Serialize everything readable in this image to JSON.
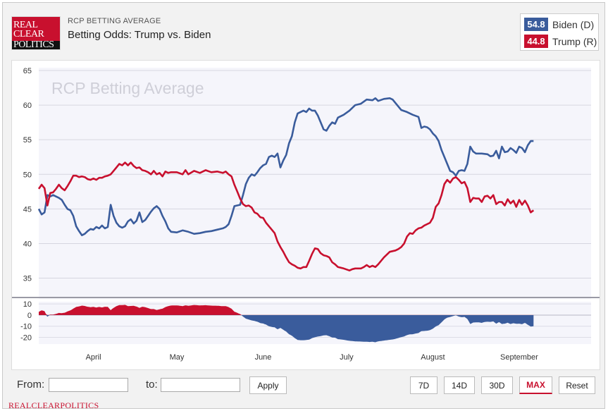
{
  "logo": {
    "line1": "REAL",
    "line2": "CLEAR",
    "line3": "POLITICS"
  },
  "header": {
    "subtitle": "RCP BETTING AVERAGE",
    "title": "Betting Odds: Trump vs. Biden"
  },
  "legend": [
    {
      "value": "54.8",
      "name": "Biden (D)",
      "color": "#3a5c9c"
    },
    {
      "value": "44.8",
      "name": "Trump (R)",
      "color": "#c8102e"
    }
  ],
  "controls": {
    "from_label": "From:",
    "from_value": "",
    "to_label": "to:",
    "to_value": "",
    "apply_label": "Apply",
    "ranges": [
      "7D",
      "14D",
      "30D",
      "MAX"
    ],
    "active_range": "MAX",
    "reset_label": "Reset"
  },
  "footer": {
    "text": "REALCLEARPOLITICS"
  },
  "chart_data": {
    "type": "line",
    "watermark": "RCP Betting Average",
    "ylim": [
      32,
      65
    ],
    "yticks": [
      35,
      40,
      45,
      50,
      55,
      60,
      65
    ],
    "spread_ylim": [
      -26,
      12
    ],
    "spread_yticks": [
      10,
      0,
      -10,
      -20
    ],
    "xlim": [
      0,
      192
    ],
    "month_labels": [
      {
        "label": "April",
        "day": 19
      },
      {
        "label": "May",
        "day": 48
      },
      {
        "label": "June",
        "day": 78
      },
      {
        "label": "July",
        "day": 107
      },
      {
        "label": "August",
        "day": 137
      },
      {
        "label": "September",
        "day": 167
      }
    ],
    "series": [
      {
        "name": "Biden (D)",
        "color": "#3a5c9c",
        "points": [
          [
            0,
            45.0
          ],
          [
            1,
            44.2
          ],
          [
            2,
            44.5
          ],
          [
            3,
            47.0
          ],
          [
            4,
            46.8
          ],
          [
            5,
            47.0
          ],
          [
            7,
            46.6
          ],
          [
            8,
            46.3
          ],
          [
            9,
            45.6
          ],
          [
            10,
            45.0
          ],
          [
            11,
            44.8
          ],
          [
            12,
            44.0
          ],
          [
            13,
            42.5
          ],
          [
            14,
            41.8
          ],
          [
            15,
            41.2
          ],
          [
            16,
            41.4
          ],
          [
            17,
            41.8
          ],
          [
            18,
            42.1
          ],
          [
            19,
            42.0
          ],
          [
            20,
            42.4
          ],
          [
            21,
            42.2
          ],
          [
            22,
            42.6
          ],
          [
            23,
            42.2
          ],
          [
            24,
            42.4
          ],
          [
            25,
            45.6
          ],
          [
            26,
            44.0
          ],
          [
            27,
            43.0
          ],
          [
            28,
            42.5
          ],
          [
            29,
            42.3
          ],
          [
            30,
            42.5
          ],
          [
            31,
            43.2
          ],
          [
            32,
            43.5
          ],
          [
            33,
            42.9
          ],
          [
            34,
            43.3
          ],
          [
            35,
            44.5
          ],
          [
            36,
            43.1
          ],
          [
            37,
            43.4
          ],
          [
            38,
            44.0
          ],
          [
            39,
            44.6
          ],
          [
            40,
            45.1
          ],
          [
            41,
            45.4
          ],
          [
            42,
            45.0
          ],
          [
            43,
            44.0
          ],
          [
            44,
            43.2
          ],
          [
            45,
            42.2
          ],
          [
            46,
            41.7
          ],
          [
            48,
            41.6
          ],
          [
            50,
            41.9
          ],
          [
            52,
            41.7
          ],
          [
            54,
            41.4
          ],
          [
            56,
            41.5
          ],
          [
            58,
            41.7
          ],
          [
            60,
            41.8
          ],
          [
            62,
            42.0
          ],
          [
            64,
            42.2
          ],
          [
            65,
            42.4
          ],
          [
            66,
            42.8
          ],
          [
            67,
            44.0
          ],
          [
            68,
            45.4
          ],
          [
            70,
            45.6
          ],
          [
            71,
            47.0
          ],
          [
            72,
            48.6
          ],
          [
            73,
            49.5
          ],
          [
            74,
            50.0
          ],
          [
            75,
            49.8
          ],
          [
            76,
            50.3
          ],
          [
            77,
            50.9
          ],
          [
            78,
            51.3
          ],
          [
            79,
            51.5
          ],
          [
            80,
            52.5
          ],
          [
            81,
            52.7
          ],
          [
            82,
            52.5
          ],
          [
            83,
            53.0
          ],
          [
            84,
            51.0
          ],
          [
            85,
            52.0
          ],
          [
            86,
            52.8
          ],
          [
            87,
            54.5
          ],
          [
            88,
            55.5
          ],
          [
            89,
            57.5
          ],
          [
            90,
            58.8
          ],
          [
            91,
            59.0
          ],
          [
            92,
            59.2
          ],
          [
            93,
            59.0
          ],
          [
            94,
            59.5
          ],
          [
            95,
            59.2
          ],
          [
            96,
            59.2
          ],
          [
            97,
            58.5
          ],
          [
            98,
            57.5
          ],
          [
            99,
            56.5
          ],
          [
            100,
            56.3
          ],
          [
            101,
            57.0
          ],
          [
            102,
            57.5
          ],
          [
            103,
            57.3
          ],
          [
            104,
            58.2
          ],
          [
            106,
            58.6
          ],
          [
            108,
            59.2
          ],
          [
            110,
            60.0
          ],
          [
            112,
            60.2
          ],
          [
            114,
            60.8
          ],
          [
            116,
            60.7
          ],
          [
            117,
            61.0
          ],
          [
            118,
            60.6
          ],
          [
            120,
            60.9
          ],
          [
            122,
            61.0
          ],
          [
            123,
            60.8
          ],
          [
            124,
            60.3
          ],
          [
            125,
            59.8
          ],
          [
            126,
            59.3
          ],
          [
            128,
            59.0
          ],
          [
            130,
            58.6
          ],
          [
            132,
            58.3
          ],
          [
            133,
            56.7
          ],
          [
            134,
            56.9
          ],
          [
            135,
            56.8
          ],
          [
            136,
            56.5
          ],
          [
            137,
            55.9
          ],
          [
            138,
            55.5
          ],
          [
            139,
            54.8
          ],
          [
            140,
            53.5
          ],
          [
            141,
            52.5
          ],
          [
            142,
            51.5
          ],
          [
            143,
            50.5
          ],
          [
            144,
            50.3
          ],
          [
            145,
            49.8
          ],
          [
            146,
            50.5
          ],
          [
            147,
            50.6
          ],
          [
            148,
            50.5
          ],
          [
            149,
            51.5
          ],
          [
            150,
            54.0
          ],
          [
            151,
            53.3
          ],
          [
            152,
            53.0
          ],
          [
            154,
            53.0
          ],
          [
            156,
            52.9
          ],
          [
            157,
            52.6
          ],
          [
            158,
            52.7
          ],
          [
            159,
            53.4
          ],
          [
            160,
            52.3
          ],
          [
            161,
            54.0
          ],
          [
            162,
            53.2
          ],
          [
            163,
            53.3
          ],
          [
            164,
            53.8
          ],
          [
            165,
            53.5
          ],
          [
            166,
            53.1
          ],
          [
            167,
            54.0
          ],
          [
            168,
            53.8
          ],
          [
            169,
            53.2
          ],
          [
            170,
            54.2
          ],
          [
            171,
            54.8
          ],
          [
            172,
            54.8
          ]
        ]
      },
      {
        "name": "Trump (R)",
        "color": "#c8102e",
        "points": [
          [
            0,
            47.9
          ],
          [
            1,
            48.5
          ],
          [
            2,
            48.0
          ],
          [
            3,
            45.5
          ],
          [
            4,
            47.3
          ],
          [
            5,
            47.4
          ],
          [
            6,
            47.9
          ],
          [
            7,
            48.5
          ],
          [
            8,
            48.0
          ],
          [
            9,
            47.7
          ],
          [
            10,
            48.3
          ],
          [
            11,
            49.0
          ],
          [
            12,
            49.8
          ],
          [
            13,
            49.8
          ],
          [
            14,
            49.6
          ],
          [
            15,
            49.7
          ],
          [
            16,
            49.6
          ],
          [
            17,
            49.3
          ],
          [
            18,
            49.2
          ],
          [
            19,
            49.4
          ],
          [
            20,
            49.2
          ],
          [
            21,
            49.5
          ],
          [
            22,
            49.5
          ],
          [
            23,
            49.7
          ],
          [
            24,
            49.8
          ],
          [
            25,
            50.0
          ],
          [
            26,
            50.5
          ],
          [
            27,
            51.0
          ],
          [
            28,
            51.5
          ],
          [
            29,
            51.3
          ],
          [
            30,
            51.7
          ],
          [
            31,
            51.3
          ],
          [
            32,
            51.7
          ],
          [
            33,
            51.2
          ],
          [
            34,
            50.9
          ],
          [
            35,
            51.0
          ],
          [
            36,
            50.6
          ],
          [
            37,
            50.5
          ],
          [
            38,
            50.3
          ],
          [
            39,
            50.0
          ],
          [
            40,
            50.5
          ],
          [
            41,
            50.0
          ],
          [
            42,
            50.2
          ],
          [
            43,
            49.7
          ],
          [
            44,
            50.4
          ],
          [
            45,
            50.2
          ],
          [
            46,
            50.3
          ],
          [
            48,
            50.3
          ],
          [
            50,
            50.0
          ],
          [
            51,
            50.6
          ],
          [
            52,
            50.0
          ],
          [
            54,
            50.5
          ],
          [
            56,
            50.2
          ],
          [
            58,
            50.6
          ],
          [
            60,
            50.3
          ],
          [
            62,
            50.4
          ],
          [
            64,
            50.2
          ],
          [
            65,
            50.4
          ],
          [
            66,
            50.0
          ],
          [
            67,
            49.7
          ],
          [
            68,
            48.5
          ],
          [
            69,
            47.5
          ],
          [
            70,
            46.5
          ],
          [
            71,
            45.7
          ],
          [
            72,
            45.4
          ],
          [
            73,
            45.5
          ],
          [
            74,
            45.2
          ],
          [
            75,
            44.5
          ],
          [
            76,
            44.3
          ],
          [
            77,
            43.8
          ],
          [
            78,
            43.7
          ],
          [
            79,
            43.0
          ],
          [
            80,
            42.5
          ],
          [
            81,
            42.0
          ],
          [
            82,
            41.5
          ],
          [
            83,
            40.3
          ],
          [
            84,
            39.5
          ],
          [
            85,
            38.8
          ],
          [
            86,
            38.0
          ],
          [
            87,
            37.3
          ],
          [
            88,
            37.0
          ],
          [
            89,
            36.8
          ],
          [
            90,
            36.5
          ],
          [
            91,
            36.4
          ],
          [
            92,
            36.6
          ],
          [
            93,
            36.6
          ],
          [
            94,
            37.5
          ],
          [
            95,
            38.5
          ],
          [
            96,
            39.3
          ],
          [
            97,
            39.2
          ],
          [
            98,
            38.6
          ],
          [
            99,
            38.3
          ],
          [
            100,
            38.2
          ],
          [
            101,
            38.0
          ],
          [
            102,
            37.3
          ],
          [
            103,
            37.0
          ],
          [
            104,
            36.6
          ],
          [
            106,
            36.4
          ],
          [
            108,
            36.1
          ],
          [
            109,
            36.3
          ],
          [
            110,
            36.4
          ],
          [
            112,
            36.4
          ],
          [
            113,
            36.6
          ],
          [
            114,
            36.9
          ],
          [
            115,
            36.6
          ],
          [
            116,
            36.8
          ],
          [
            117,
            36.6
          ],
          [
            118,
            37.0
          ],
          [
            120,
            38.0
          ],
          [
            122,
            38.8
          ],
          [
            124,
            39.0
          ],
          [
            125,
            39.2
          ],
          [
            126,
            39.5
          ],
          [
            127,
            40.0
          ],
          [
            128,
            41.0
          ],
          [
            129,
            41.5
          ],
          [
            130,
            41.4
          ],
          [
            131,
            41.9
          ],
          [
            132,
            42.2
          ],
          [
            133,
            42.3
          ],
          [
            134,
            42.6
          ],
          [
            136,
            43.0
          ],
          [
            137,
            43.7
          ],
          [
            138,
            45.3
          ],
          [
            139,
            45.8
          ],
          [
            140,
            47.0
          ],
          [
            141,
            48.6
          ],
          [
            142,
            49.2
          ],
          [
            143,
            48.8
          ],
          [
            144,
            49.4
          ],
          [
            145,
            49.6
          ],
          [
            146,
            49.2
          ],
          [
            147,
            48.7
          ],
          [
            148,
            48.9
          ],
          [
            149,
            48.0
          ],
          [
            150,
            46.0
          ],
          [
            151,
            46.6
          ],
          [
            152,
            46.5
          ],
          [
            153,
            46.5
          ],
          [
            154,
            46.0
          ],
          [
            155,
            46.8
          ],
          [
            156,
            46.9
          ],
          [
            157,
            46.5
          ],
          [
            158,
            47.0
          ],
          [
            159,
            45.7
          ],
          [
            160,
            46.0
          ],
          [
            161,
            46.0
          ],
          [
            162,
            45.5
          ],
          [
            163,
            46.4
          ],
          [
            164,
            45.8
          ],
          [
            165,
            46.2
          ],
          [
            166,
            45.3
          ],
          [
            167,
            46.3
          ],
          [
            168,
            45.6
          ],
          [
            169,
            46.2
          ],
          [
            170,
            45.5
          ],
          [
            171,
            44.5
          ],
          [
            172,
            44.8
          ]
        ]
      }
    ]
  }
}
